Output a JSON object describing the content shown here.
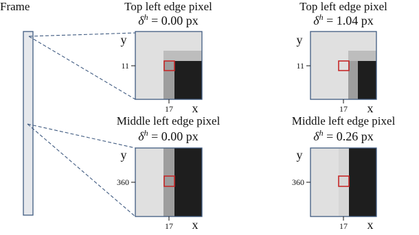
{
  "frame_label": "Frame",
  "delta_symbol": "δ",
  "delta_superscript": "h",
  "axis_x_label": "x",
  "axis_y_label": "y",
  "colors": {
    "frame_fill": "#e6e8ec",
    "frame_stroke": "#3f5a80",
    "dash": "#3f5a80",
    "light_gray": "#e0e0e0",
    "mid_gray": "#9e9e9e",
    "dark": "#1e1e1e",
    "pale_gray": "#bdbdbd",
    "highlight": "#c62828"
  },
  "panels": [
    {
      "title": "Top left edge pixel",
      "delta_text": " = 0.00 px",
      "x_tick": "17",
      "y_tick": "11"
    },
    {
      "title": "Top left edge pixel",
      "delta_text": " = 1.04 px",
      "x_tick": "17",
      "y_tick": "11"
    },
    {
      "title": "Middle left edge pixel",
      "delta_text": " = 0.00 px",
      "x_tick": "17",
      "y_tick": "360"
    },
    {
      "title": "Middle left edge pixel",
      "delta_text": " = 0.26 px",
      "x_tick": "17",
      "y_tick": "360"
    }
  ]
}
